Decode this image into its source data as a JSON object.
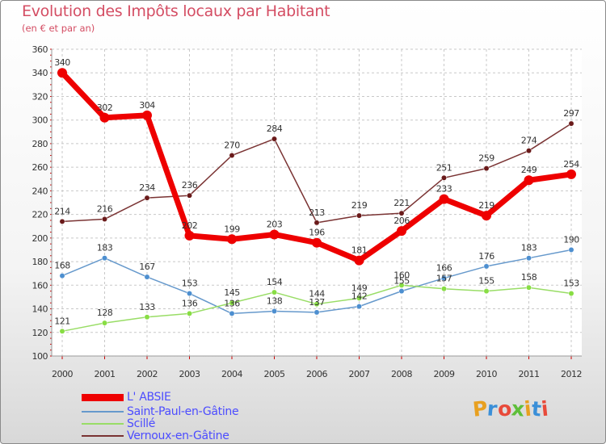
{
  "header": {
    "title": "Evolution des Impôts locaux par Habitant",
    "subtitle": "(en € et par an)"
  },
  "logo": {
    "text": "Proxiti",
    "colors": [
      "#e8a020",
      "#3a8fd8",
      "#e84a3a",
      "#5fbf3a",
      "#e8a020",
      "#3a8fd8",
      "#e84a3a"
    ]
  },
  "chart_data": {
    "type": "line",
    "title": "Evolution des Impôts locaux par Habitant",
    "subtitle": "(en € et par an)",
    "xlabel": "",
    "ylabel": "",
    "ylim": [
      100,
      360
    ],
    "yticks": [
      100,
      120,
      140,
      160,
      180,
      200,
      220,
      240,
      260,
      280,
      300,
      320,
      340,
      360
    ],
    "grid": true,
    "categories": [
      "2000",
      "2001",
      "2002",
      "2003",
      "2004",
      "2005",
      "2006",
      "2007",
      "2008",
      "2009",
      "2010",
      "2011",
      "2012"
    ],
    "series": [
      {
        "name": "L' ABSIE",
        "color": "#ee0000",
        "values": [
          340,
          302,
          304,
          202,
          199,
          203,
          196,
          181,
          206,
          233,
          219,
          249,
          254
        ]
      },
      {
        "name": "Saint-Paul-en-Gâtine",
        "color": "#6699cc",
        "values": [
          168,
          183,
          167,
          153,
          136,
          138,
          137,
          142,
          155,
          166,
          176,
          183,
          190
        ]
      },
      {
        "name": "Scillé",
        "color": "#99dd66",
        "values": [
          121,
          128,
          133,
          136,
          145,
          154,
          144,
          149,
          160,
          157,
          155,
          158,
          153
        ]
      },
      {
        "name": "Vernoux-en-Gâtine",
        "color": "#7a3333",
        "values": [
          214,
          216,
          234,
          236,
          270,
          284,
          213,
          219,
          221,
          251,
          259,
          274,
          297
        ]
      }
    ],
    "point_labels": [
      {
        "series": "L' ABSIE",
        "labels": [
          "340",
          "302",
          "304",
          "202",
          "199",
          "203",
          "196",
          "181",
          "206",
          "233",
          "219",
          "249",
          "254"
        ]
      },
      {
        "series": "Saint-Paul-en-Gâtine",
        "labels": [
          "168",
          "183",
          "167",
          "153",
          "136",
          "138",
          "137",
          "142",
          "155",
          "166",
          "176",
          "183",
          "190"
        ]
      },
      {
        "series": "Scillé",
        "labels": [
          "121",
          "128",
          "133",
          "136",
          "145",
          "154",
          "144",
          "149",
          "160",
          "157",
          "155",
          "158",
          "153"
        ]
      },
      {
        "series": "Vernoux-en-Gâtine",
        "labels": [
          "214",
          "216",
          "234",
          "236",
          "270",
          "284",
          "213",
          "219",
          "221",
          "251",
          "259",
          "274",
          "297"
        ]
      }
    ],
    "legend": {
      "position": "bottom-left"
    }
  }
}
